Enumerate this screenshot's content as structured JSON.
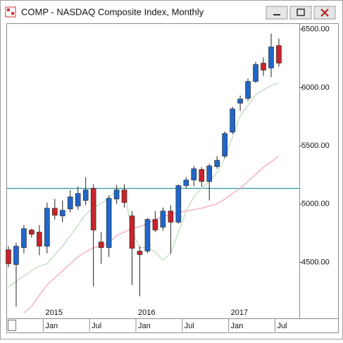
{
  "chart_data": {
    "type": "candlestick",
    "title": "COMP - NASDAQ Composite Index, Monthly",
    "categories": [
      null,
      null,
      null,
      null,
      null,
      "Jan",
      null,
      null,
      null,
      null,
      null,
      "Jul",
      null,
      null,
      null,
      null,
      null,
      "Jan",
      null,
      null,
      null,
      null,
      null,
      "Jul",
      null,
      null,
      null,
      null,
      null,
      "Jan",
      null,
      null,
      null,
      null,
      null,
      "Jul"
    ],
    "years": [
      null,
      null,
      null,
      null,
      null,
      "2015",
      null,
      null,
      null,
      null,
      null,
      null,
      null,
      null,
      null,
      null,
      null,
      "2016",
      null,
      null,
      null,
      null,
      null,
      null,
      null,
      null,
      null,
      null,
      null,
      "2017",
      null,
      null,
      null,
      null,
      null,
      null
    ],
    "open": [
      4609,
      4482,
      4627,
      4778,
      4760,
      4639,
      4965,
      4899,
      4959,
      4984,
      5032,
      5135,
      4675,
      4627,
      5044,
      5122,
      4899,
      4597,
      4597,
      4869,
      4802,
      4941,
      4845,
      5159,
      5207,
      5298,
      5195,
      5322,
      5412,
      5618,
      5866,
      5908,
      6053,
      6210,
      6168,
      6361
    ],
    "high": [
      4639,
      4669,
      4820,
      4790,
      4820,
      5014,
      5044,
      5032,
      5122,
      5153,
      5231,
      5171,
      4760,
      5074,
      5165,
      5171,
      4941,
      4639,
      4881,
      4941,
      4971,
      4990,
      5171,
      5231,
      5328,
      5316,
      5346,
      5412,
      5624,
      5835,
      5932,
      6077,
      6222,
      6258,
      6464,
      6421
    ],
    "low": [
      4458,
      4119,
      4579,
      4712,
      4561,
      4579,
      4869,
      4845,
      4929,
      4953,
      4990,
      4295,
      4488,
      4548,
      5002,
      4971,
      4307,
      4210,
      4579,
      4760,
      4772,
      4573,
      4832,
      5135,
      5153,
      5147,
      5032,
      5304,
      5394,
      5600,
      5799,
      5884,
      6041,
      6101,
      6089,
      6180
    ],
    "close": [
      4488,
      4639,
      4790,
      4742,
      4639,
      4965,
      4905,
      4947,
      5062,
      5092,
      5122,
      4778,
      4627,
      5050,
      5122,
      5014,
      4621,
      4567,
      4869,
      4778,
      4941,
      4845,
      5159,
      5207,
      5304,
      5195,
      5328,
      5376,
      5606,
      5817,
      5902,
      6053,
      6198,
      6150,
      6349,
      6210
    ],
    "up_color": "#2166c9",
    "down_color": "#c8242b",
    "series": [
      {
        "color": "#bfdcbf",
        "values": [
          4289,
          4337,
          4385,
          4428,
          4470,
          4488,
          4567,
          4639,
          4730,
          4820,
          4911,
          4971,
          5002,
          5062,
          5110,
          5110,
          4760,
          4627,
          4627,
          4591,
          4518,
          4579,
          4760,
          4941,
          5062,
          5135,
          5195,
          5273,
          5394,
          5576,
          5757,
          5847,
          5938,
          5980,
          6017,
          6041
        ]
      },
      {
        "color": "#f2a7bd",
        "values": [
          null,
          null,
          4065,
          4126,
          4216,
          4307,
          4367,
          4428,
          4488,
          4548,
          4591,
          4627,
          4639,
          4669,
          4730,
          4760,
          4790,
          4808,
          4832,
          4869,
          4893,
          4911,
          4929,
          4941,
          4953,
          4965,
          4984,
          5002,
          5044,
          5092,
          5135,
          5195,
          5255,
          5316,
          5364,
          5412
        ]
      }
    ],
    "reference_line": {
      "value": 5135,
      "color": "#2a9a9a"
    },
    "ylim": [
      4020,
      6540
    ],
    "yticks": [
      {
        "value": 4500,
        "label": "4500.00"
      },
      {
        "value": 5000,
        "label": "5000.00"
      },
      {
        "value": 5500,
        "label": "5500.00"
      },
      {
        "value": 6000,
        "label": "6000.00"
      },
      {
        "value": 6500,
        "label": "6500.00"
      }
    ]
  }
}
